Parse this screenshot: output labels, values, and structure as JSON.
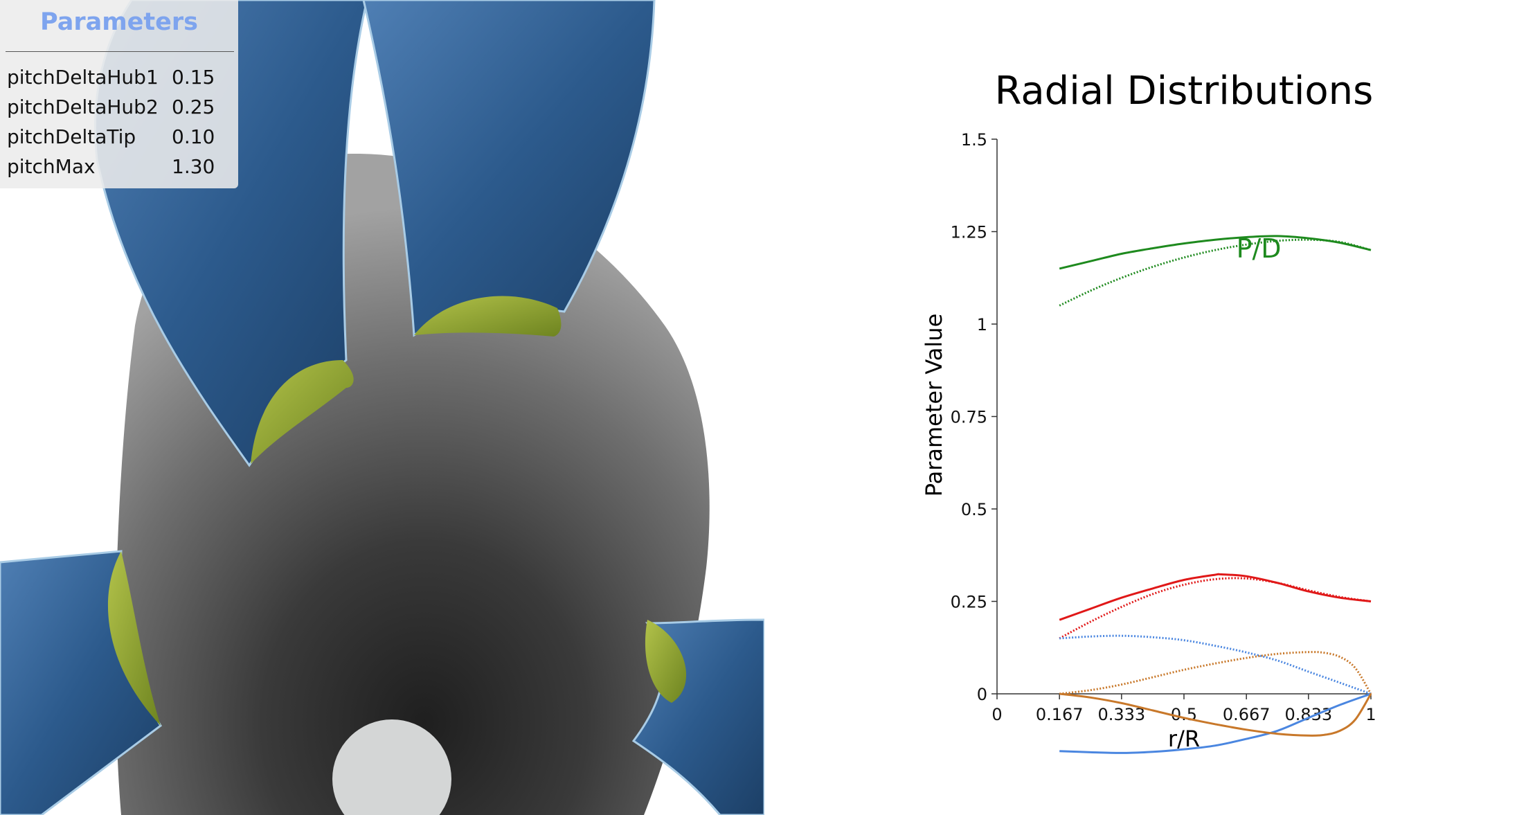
{
  "parameters_panel": {
    "title": "Parameters",
    "rows": [
      {
        "name": "pitchDeltaHub1",
        "value": "0.15"
      },
      {
        "name": "pitchDeltaHub2",
        "value": "0.25"
      },
      {
        "name": "pitchDeltaTip",
        "value": "0.10"
      },
      {
        "name": "pitchMax",
        "value": "1.30"
      }
    ]
  },
  "colors": {
    "panel_title": "#7ea4ee",
    "blade": "#2c5a8c",
    "hub": "#8f8f8f",
    "fillet": "#8aa02a",
    "series_pd": "#1e8a1e",
    "series_red": "#e01818",
    "series_blue": "#4a86e0",
    "series_orange": "#c8782a"
  },
  "chart_data": {
    "type": "line",
    "title": "Radial Distributions",
    "xlabel": "r/R",
    "ylabel": "Parameter Value",
    "xlim": [
      0,
      1
    ],
    "ylim": [
      -0.17,
      1.5
    ],
    "xticks": [
      0,
      0.167,
      0.333,
      0.5,
      0.667,
      0.833,
      1
    ],
    "xtick_labels": [
      "0",
      "0.167",
      "0.333",
      "0.5",
      "0.667",
      "0.833",
      "1"
    ],
    "yticks": [
      0,
      0.25,
      0.5,
      0.75,
      1,
      1.25,
      1.5
    ],
    "ytick_labels": [
      "0",
      "0.25",
      "0.5",
      "0.75",
      "1",
      "1.25",
      "1.5"
    ],
    "annotations": [
      {
        "text": "P/D",
        "x": 0.64,
        "y": 1.18
      }
    ],
    "series": [
      {
        "color": "#1e8a1e",
        "style": "solid",
        "x": [
          0.167,
          0.25,
          0.333,
          0.417,
          0.5,
          0.583,
          0.667,
          0.75,
          0.833,
          0.917,
          1.0
        ],
        "y": [
          1.15,
          1.17,
          1.19,
          1.205,
          1.218,
          1.228,
          1.235,
          1.238,
          1.232,
          1.22,
          1.2
        ]
      },
      {
        "color": "#1e8a1e",
        "style": "dotted",
        "x": [
          0.167,
          0.25,
          0.333,
          0.417,
          0.5,
          0.583,
          0.667,
          0.75,
          0.833,
          0.917,
          1.0
        ],
        "y": [
          1.05,
          1.09,
          1.125,
          1.155,
          1.18,
          1.2,
          1.215,
          1.225,
          1.228,
          1.222,
          1.2
        ]
      },
      {
        "color": "#e01818",
        "style": "solid",
        "x": [
          0.167,
          0.25,
          0.333,
          0.417,
          0.5,
          0.583,
          0.6,
          0.667,
          0.75,
          0.833,
          0.917,
          1.0
        ],
        "y": [
          0.2,
          0.23,
          0.26,
          0.285,
          0.308,
          0.322,
          0.323,
          0.318,
          0.3,
          0.277,
          0.26,
          0.25
        ]
      },
      {
        "color": "#e01818",
        "style": "dotted",
        "x": [
          0.167,
          0.25,
          0.333,
          0.417,
          0.5,
          0.583,
          0.667,
          0.75,
          0.833,
          0.917,
          1.0
        ],
        "y": [
          0.15,
          0.195,
          0.235,
          0.27,
          0.295,
          0.31,
          0.312,
          0.3,
          0.28,
          0.262,
          0.25
        ]
      },
      {
        "color": "#4a86e0",
        "style": "dotted",
        "x": [
          0.167,
          0.25,
          0.333,
          0.417,
          0.5,
          0.583,
          0.667,
          0.75,
          0.833,
          0.917,
          1.0
        ],
        "y": [
          0.15,
          0.155,
          0.157,
          0.153,
          0.145,
          0.13,
          0.112,
          0.09,
          0.06,
          0.03,
          0.0
        ]
      },
      {
        "color": "#4a86e0",
        "style": "solid",
        "x": [
          0.167,
          0.25,
          0.333,
          0.417,
          0.5,
          0.583,
          0.667,
          0.75,
          0.833,
          0.917,
          1.0
        ],
        "y": [
          -0.155,
          -0.158,
          -0.16,
          -0.157,
          -0.15,
          -0.14,
          -0.122,
          -0.1,
          -0.065,
          -0.03,
          0.0
        ]
      },
      {
        "color": "#c8782a",
        "style": "dotted",
        "x": [
          0.167,
          0.25,
          0.333,
          0.417,
          0.5,
          0.583,
          0.667,
          0.75,
          0.833,
          0.875,
          0.917,
          0.958,
          1.0
        ],
        "y": [
          0.0,
          0.01,
          0.025,
          0.045,
          0.065,
          0.082,
          0.097,
          0.108,
          0.113,
          0.111,
          0.1,
          0.07,
          0.0
        ]
      },
      {
        "color": "#c8782a",
        "style": "solid",
        "x": [
          0.167,
          0.25,
          0.333,
          0.417,
          0.5,
          0.583,
          0.667,
          0.75,
          0.833,
          0.875,
          0.917,
          0.958,
          1.0
        ],
        "y": [
          0.0,
          -0.01,
          -0.025,
          -0.045,
          -0.065,
          -0.082,
          -0.097,
          -0.108,
          -0.113,
          -0.111,
          -0.1,
          -0.07,
          0.0
        ]
      }
    ]
  }
}
